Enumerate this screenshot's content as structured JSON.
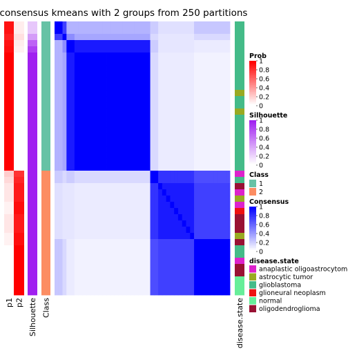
{
  "chart_data": {
    "type": "heatmap",
    "title": "consensus kmeans with 2 groups from 250 partitions",
    "annotation_columns": [
      "p1",
      "p2",
      "Silhouette",
      "Class"
    ],
    "bottom_annotation_label": "disease.state",
    "rows": [
      {
        "p1": 0.93,
        "p2": 0.07,
        "sil": 0.25,
        "cls": 1,
        "cblock": 0,
        "disease": "glioblastoma"
      },
      {
        "p1": 0.93,
        "p2": 0.07,
        "sil": 0.25,
        "cls": 1,
        "cblock": 0,
        "disease": "glioblastoma"
      },
      {
        "p1": 0.88,
        "p2": 0.12,
        "sil": 0.45,
        "cls": 1,
        "cblock": 1,
        "disease": "glioblastoma"
      },
      {
        "p1": 0.93,
        "p2": 0.07,
        "sil": 0.7,
        "cls": 1,
        "cblock": 2,
        "disease": "glioblastoma"
      },
      {
        "p1": 0.95,
        "p2": 0.05,
        "sil": 0.85,
        "cls": 1,
        "cblock": 2,
        "disease": "glioblastoma"
      },
      {
        "p1": 1,
        "p2": 0,
        "sil": 1,
        "cls": 1,
        "cblock": 3,
        "disease": "glioblastoma"
      },
      {
        "p1": 1,
        "p2": 0,
        "sil": 1,
        "cls": 1,
        "cblock": 3,
        "disease": "glioblastoma"
      },
      {
        "p1": 1,
        "p2": 0,
        "sil": 1,
        "cls": 1,
        "cblock": 3,
        "disease": "glioblastoma"
      },
      {
        "p1": 1,
        "p2": 0,
        "sil": 1,
        "cls": 1,
        "cblock": 3,
        "disease": "glioblastoma"
      },
      {
        "p1": 1,
        "p2": 0,
        "sil": 1,
        "cls": 1,
        "cblock": 3,
        "disease": "glioblastoma"
      },
      {
        "p1": 1,
        "p2": 0,
        "sil": 1,
        "cls": 1,
        "cblock": 3,
        "disease": "glioblastoma"
      },
      {
        "p1": 1,
        "p2": 0,
        "sil": 1,
        "cls": 1,
        "cblock": 3,
        "disease": "astrocytic tumor"
      },
      {
        "p1": 1,
        "p2": 0,
        "sil": 1,
        "cls": 1,
        "cblock": 3,
        "disease": "glioblastoma"
      },
      {
        "p1": 1,
        "p2": 0,
        "sil": 1,
        "cls": 1,
        "cblock": 3,
        "disease": "glioblastoma"
      },
      {
        "p1": 1,
        "p2": 0,
        "sil": 1,
        "cls": 1,
        "cblock": 3,
        "disease": "astrocytic tumor"
      },
      {
        "p1": 1,
        "p2": 0,
        "sil": 1,
        "cls": 1,
        "cblock": 3,
        "disease": "glioblastoma"
      },
      {
        "p1": 1,
        "p2": 0,
        "sil": 1,
        "cls": 1,
        "cblock": 3,
        "disease": "glioblastoma"
      },
      {
        "p1": 1,
        "p2": 0,
        "sil": 1,
        "cls": 1,
        "cblock": 3,
        "disease": "glioblastoma"
      },
      {
        "p1": 1,
        "p2": 0,
        "sil": 1,
        "cls": 1,
        "cblock": 3,
        "disease": "glioblastoma"
      },
      {
        "p1": 1,
        "p2": 0,
        "sil": 1,
        "cls": 1,
        "cblock": 3,
        "disease": "glioblastoma"
      },
      {
        "p1": 1,
        "p2": 0,
        "sil": 1,
        "cls": 1,
        "cblock": 3,
        "disease": "glioblastoma"
      },
      {
        "p1": 1,
        "p2": 0,
        "sil": 1,
        "cls": 1,
        "cblock": 3,
        "disease": "glioblastoma"
      },
      {
        "p1": 1,
        "p2": 0,
        "sil": 1,
        "cls": 1,
        "cblock": 3,
        "disease": "glioblastoma"
      },
      {
        "p1": 1,
        "p2": 0,
        "sil": 1,
        "cls": 1,
        "cblock": 3,
        "disease": "glioblastoma"
      },
      {
        "p1": 0.2,
        "p2": 0.8,
        "sil": 1,
        "cls": 2,
        "cblock": 4,
        "disease": "anaplastic oligoastrocytoma"
      },
      {
        "p1": 0.15,
        "p2": 0.85,
        "sil": 1,
        "cls": 2,
        "cblock": 4,
        "disease": "glioblastoma"
      },
      {
        "p1": 0.1,
        "p2": 0.9,
        "sil": 1,
        "cls": 2,
        "cblock": 5,
        "disease": "oligodendroglioma"
      },
      {
        "p1": 0.1,
        "p2": 0.9,
        "sil": 1,
        "cls": 2,
        "cblock": 5,
        "disease": "anaplastic oligoastrocytoma"
      },
      {
        "p1": 0.1,
        "p2": 0.9,
        "sil": 1,
        "cls": 2,
        "cblock": 5,
        "disease": "astrocytic tumor"
      },
      {
        "p1": 0.05,
        "p2": 0.95,
        "sil": 1,
        "cls": 2,
        "cblock": 5,
        "disease": "anaplastic oligoastrocytoma"
      },
      {
        "p1": 0.05,
        "p2": 0.95,
        "sil": 1,
        "cls": 2,
        "cblock": 5,
        "disease": "glioneural neoplasm"
      },
      {
        "p1": 0.1,
        "p2": 0.9,
        "sil": 1,
        "cls": 2,
        "cblock": 5,
        "disease": "oligodendroglioma"
      },
      {
        "p1": 0.1,
        "p2": 0.9,
        "sil": 1,
        "cls": 2,
        "cblock": 5,
        "disease": "oligodendroglioma"
      },
      {
        "p1": 0.1,
        "p2": 0.9,
        "sil": 1,
        "cls": 2,
        "cblock": 5,
        "disease": "oligodendroglioma"
      },
      {
        "p1": 0.05,
        "p2": 0.95,
        "sil": 1,
        "cls": 2,
        "cblock": 5,
        "disease": "astrocytic tumor"
      },
      {
        "p1": 0.05,
        "p2": 0.95,
        "sil": 1,
        "cls": 2,
        "cblock": 6,
        "disease": "oligodendroglioma"
      },
      {
        "p1": 0,
        "p2": 1,
        "sil": 1,
        "cls": 2,
        "cblock": 6,
        "disease": "glioblastoma"
      },
      {
        "p1": 0,
        "p2": 1,
        "sil": 1,
        "cls": 2,
        "cblock": 6,
        "disease": "glioblastoma"
      },
      {
        "p1": 0,
        "p2": 1,
        "sil": 1,
        "cls": 2,
        "cblock": 6,
        "disease": "anaplastic oligoastrocytoma"
      },
      {
        "p1": 0,
        "p2": 1,
        "sil": 1,
        "cls": 2,
        "cblock": 6,
        "disease": "oligodendroglioma"
      },
      {
        "p1": 0,
        "p2": 1,
        "sil": 1,
        "cls": 2,
        "cblock": 6,
        "disease": "oligodendroglioma"
      },
      {
        "p1": 0,
        "p2": 1,
        "sil": 1,
        "cls": 2,
        "cblock": 6,
        "disease": "normal"
      },
      {
        "p1": 0,
        "p2": 1,
        "sil": 1,
        "cls": 2,
        "cblock": 6,
        "disease": "normal"
      },
      {
        "p1": 0,
        "p2": 1,
        "sil": 1,
        "cls": 2,
        "cblock": 6,
        "disease": "normal"
      }
    ],
    "consensus_blocks": [
      [
        1.0,
        0.75,
        0.3,
        0.3,
        0.2,
        0.12,
        0.22
      ],
      [
        0.75,
        1.0,
        0.45,
        0.35,
        0.15,
        0.1,
        0.15
      ],
      [
        0.3,
        0.45,
        1.0,
        0.9,
        0.2,
        0.1,
        0.08
      ],
      [
        0.3,
        0.35,
        0.9,
        1.0,
        0.15,
        0.08,
        0.05
      ],
      [
        0.2,
        0.15,
        0.2,
        0.15,
        1.0,
        0.8,
        0.7
      ],
      [
        0.12,
        0.1,
        0.1,
        0.08,
        0.8,
        0.9,
        0.75
      ],
      [
        0.22,
        0.15,
        0.08,
        0.05,
        0.7,
        0.75,
        1.0
      ]
    ],
    "legends": {
      "prob": {
        "title": "Prob",
        "ticks": [
          "1",
          "0.8",
          "0.6",
          "0.4",
          "0.2",
          "0"
        ],
        "color": "#FF0000"
      },
      "silhouette": {
        "title": "Silhouette",
        "ticks": [
          "1",
          "0.8",
          "0.6",
          "0.4",
          "0.2",
          "0"
        ],
        "color": "#A020F0"
      },
      "class": {
        "title": "Class",
        "entries": [
          {
            "label": "1",
            "color": "#66C2A5"
          },
          {
            "label": "2",
            "color": "#FC8D62"
          }
        ]
      },
      "consensus": {
        "title": "Consensus",
        "ticks": [
          "1",
          "0.8",
          "0.6",
          "0.4",
          "0.2",
          "0"
        ],
        "color": "#0000FF"
      },
      "disease": {
        "title": "disease.state",
        "entries": [
          {
            "label": "anaplastic oligoastrocytoma",
            "color": "#DD22CC"
          },
          {
            "label": "astrocytic tumor",
            "color": "#99AA22"
          },
          {
            "label": "glioblastoma",
            "color": "#44BB88"
          },
          {
            "label": "glioneural neoplasm",
            "color": "#EE1111"
          },
          {
            "label": "normal",
            "color": "#66EE99"
          },
          {
            "label": "oligodendroglioma",
            "color": "#991133"
          }
        ]
      }
    }
  }
}
